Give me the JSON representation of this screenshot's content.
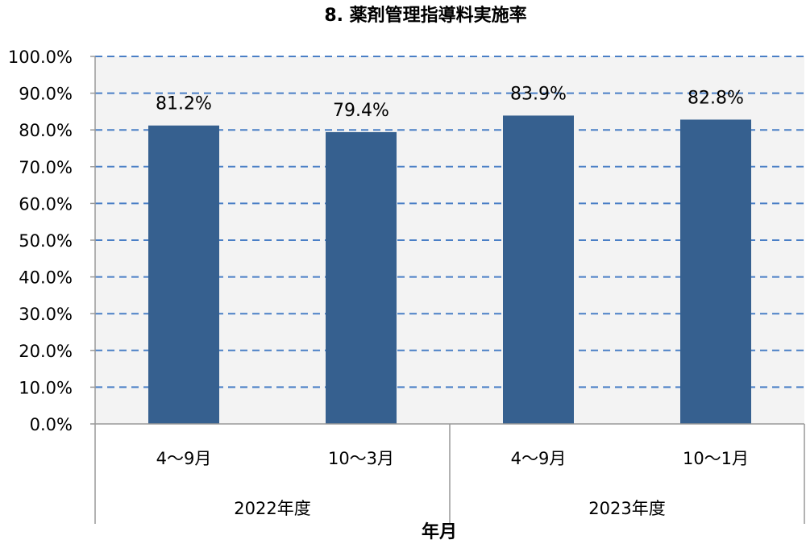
{
  "chart_data": {
    "type": "bar",
    "title": "8. 薬剤管理指導料実施率",
    "xlabel": "年月",
    "ylabel": "",
    "categories": [
      "4～9月",
      "10～3月",
      "4～9月",
      "10～1月"
    ],
    "groups": [
      {
        "label": "2022年度",
        "span": [
          0,
          1
        ]
      },
      {
        "label": "2023年度",
        "span": [
          2,
          3
        ]
      }
    ],
    "values": [
      81.2,
      79.4,
      83.9,
      82.8
    ],
    "data_labels": [
      "81.2%",
      "79.4%",
      "83.9%",
      "82.8%"
    ],
    "ylim": [
      0,
      100
    ],
    "yticks": [
      "0.0%",
      "10.0%",
      "20.0%",
      "30.0%",
      "40.0%",
      "50.0%",
      "60.0%",
      "70.0%",
      "80.0%",
      "90.0%",
      "100.0%"
    ],
    "grid": true,
    "colors": {
      "bar": "#36608f",
      "grid": "#4a7fc6",
      "plot_bg": "#f3f3f3",
      "axis": "#999999"
    }
  }
}
